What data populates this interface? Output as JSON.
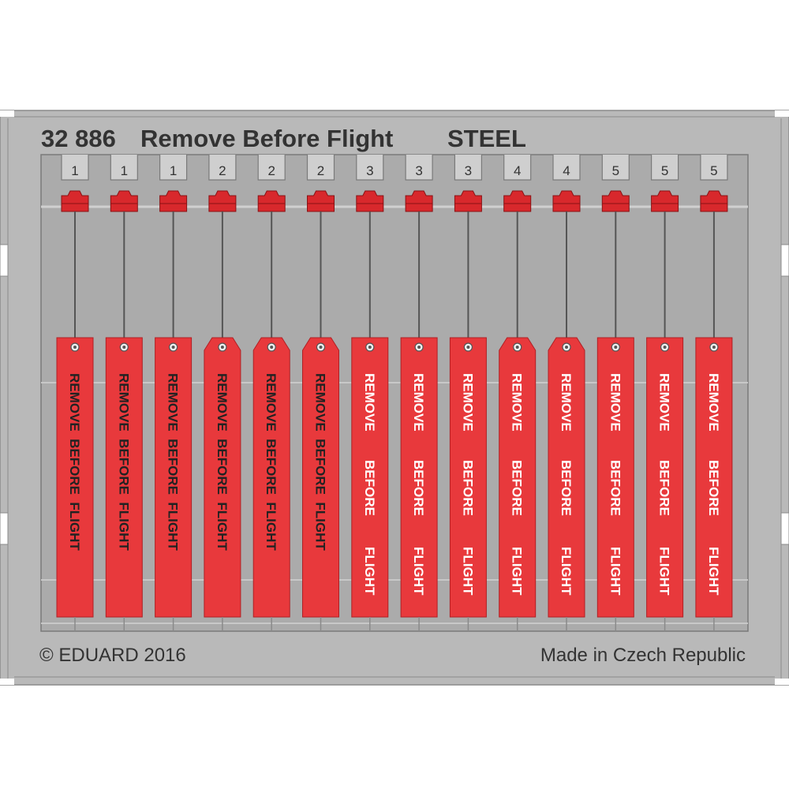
{
  "header": {
    "code": "32 886",
    "title": "Remove Before Flight",
    "material": "STEEL"
  },
  "footer": {
    "copyright": "© EDUARD 2016",
    "origin": "Made in Czech Republic"
  },
  "colors": {
    "steel": "#b9b9b9",
    "steel_dark": "#8a8a8a",
    "background": "#ffffff",
    "tag_red": "#e8393c",
    "clip_red": "#d8282c",
    "text_dark": "#333333",
    "text_light": "#ffffff"
  },
  "tags": [
    {
      "number": "1",
      "text": "REMOVE  BEFORE  FLIGHT",
      "lines": [
        "REMOVE  BEFORE  FLIGHT"
      ],
      "text_color": "dark",
      "shape": "flat"
    },
    {
      "number": "1",
      "text": "REMOVE  BEFORE  FLIGHT",
      "lines": [
        "REMOVE  BEFORE  FLIGHT"
      ],
      "text_color": "dark",
      "shape": "flat"
    },
    {
      "number": "1",
      "text": "REMOVE  BEFORE  FLIGHT",
      "lines": [
        "REMOVE  BEFORE  FLIGHT"
      ],
      "text_color": "dark",
      "shape": "flat"
    },
    {
      "number": "2",
      "text": "REMOVE  BEFORE  FLIGHT",
      "lines": [
        "REMOVE  BEFORE  FLIGHT"
      ],
      "text_color": "dark",
      "shape": "pointed"
    },
    {
      "number": "2",
      "text": "REMOVE  BEFORE  FLIGHT",
      "lines": [
        "REMOVE  BEFORE  FLIGHT"
      ],
      "text_color": "dark",
      "shape": "pointed"
    },
    {
      "number": "2",
      "text": "REMOVE  BEFORE  FLIGHT",
      "lines": [
        "REMOVE  BEFORE  FLIGHT"
      ],
      "text_color": "dark",
      "shape": "pointed"
    },
    {
      "number": "3",
      "text": "REMOVE BEFORE FLIGHT",
      "lines": [
        "REMOVE",
        "BEFORE",
        "FLIGHT"
      ],
      "text_color": "light",
      "shape": "flat"
    },
    {
      "number": "3",
      "text": "REMOVE BEFORE FLIGHT",
      "lines": [
        "REMOVE",
        "BEFORE",
        "FLIGHT"
      ],
      "text_color": "light",
      "shape": "flat"
    },
    {
      "number": "3",
      "text": "REMOVE BEFORE FLIGHT",
      "lines": [
        "REMOVE",
        "BEFORE",
        "FLIGHT"
      ],
      "text_color": "light",
      "shape": "flat"
    },
    {
      "number": "4",
      "text": "REMOVE BEFORE FLIGHT",
      "lines": [
        "REMOVE",
        "BEFORE",
        "FLIGHT"
      ],
      "text_color": "light",
      "shape": "pointed"
    },
    {
      "number": "4",
      "text": "REMOVE BEFORE FLIGHT",
      "lines": [
        "REMOVE",
        "BEFORE",
        "FLIGHT"
      ],
      "text_color": "light",
      "shape": "pointed"
    },
    {
      "number": "5",
      "text": "REMOVE BEFORE FLIGHT",
      "lines": [
        "REMOVE",
        "BEFORE",
        "FLIGHT"
      ],
      "text_color": "light",
      "shape": "flat"
    },
    {
      "number": "5",
      "text": "REMOVE BEFORE FLIGHT",
      "lines": [
        "REMOVE",
        "BEFORE",
        "FLIGHT"
      ],
      "text_color": "light",
      "shape": "flat"
    },
    {
      "number": "5",
      "text": "REMOVE BEFORE FLIGHT",
      "lines": [
        "REMOVE",
        "BEFORE",
        "FLIGHT"
      ],
      "text_color": "light",
      "shape": "flat"
    }
  ]
}
